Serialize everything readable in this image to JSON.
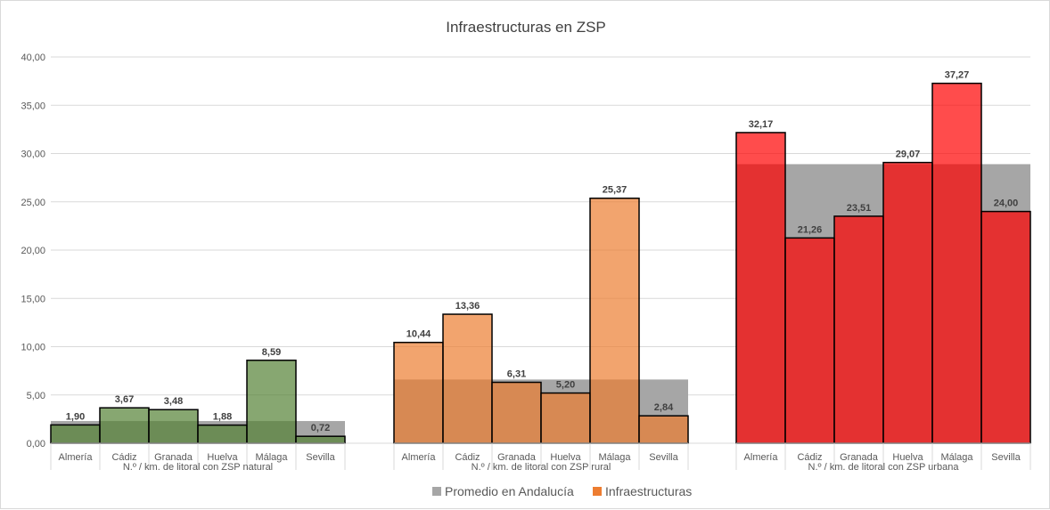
{
  "chart_data": {
    "type": "bar",
    "title": "Infraestructuras en ZSP",
    "ylim": [
      0,
      40
    ],
    "ytick_labels": [
      "0,00",
      "5,00",
      "10,00",
      "15,00",
      "20,00",
      "25,00",
      "30,00",
      "35,00",
      "40,00"
    ],
    "yticks": [
      0,
      5,
      10,
      15,
      20,
      25,
      30,
      35,
      40
    ],
    "grid": true,
    "legend_position": "bottom",
    "legend": [
      {
        "name": "Promedio en Andalucía",
        "color": "#a6a6a6"
      },
      {
        "name": "Infraestructuras",
        "color": "#ed7d31"
      }
    ],
    "groups": [
      {
        "label": "N.º / km. de litoral con ZSP natural",
        "color": "#548235",
        "categories": [
          "Almería",
          "Cádiz",
          "Granada",
          "Huelva",
          "Málaga",
          "Sevilla"
        ],
        "promedio": 2.3,
        "values": [
          1.9,
          3.67,
          3.48,
          1.88,
          8.59,
          0.72
        ],
        "value_labels": [
          "1,90",
          "3,67",
          "3,48",
          "1,88",
          "8,59",
          "0,72"
        ]
      },
      {
        "label": "N.º / km. de litoral con ZSP rural",
        "color": "#ed7d31",
        "categories": [
          "Almería",
          "Cádiz",
          "Granada",
          "Huelva",
          "Málaga",
          "Sevilla"
        ],
        "promedio": 6.6,
        "values": [
          10.44,
          13.36,
          6.31,
          5.2,
          25.37,
          2.84
        ],
        "value_labels": [
          "10,44",
          "13,36",
          "6,31",
          "5,20",
          "25,37",
          "2,84"
        ]
      },
      {
        "label": "N.º / km. de litoral con ZSP urbana",
        "color": "#ff0000",
        "categories": [
          "Almería",
          "Cádiz",
          "Granada",
          "Huelva",
          "Málaga",
          "Sevilla"
        ],
        "promedio": 28.9,
        "values": [
          32.17,
          21.26,
          23.51,
          29.07,
          37.27,
          24.0
        ],
        "value_labels": [
          "32,17",
          "21,26",
          "23,51",
          "29,07",
          "37,27",
          "24,00"
        ]
      }
    ]
  }
}
